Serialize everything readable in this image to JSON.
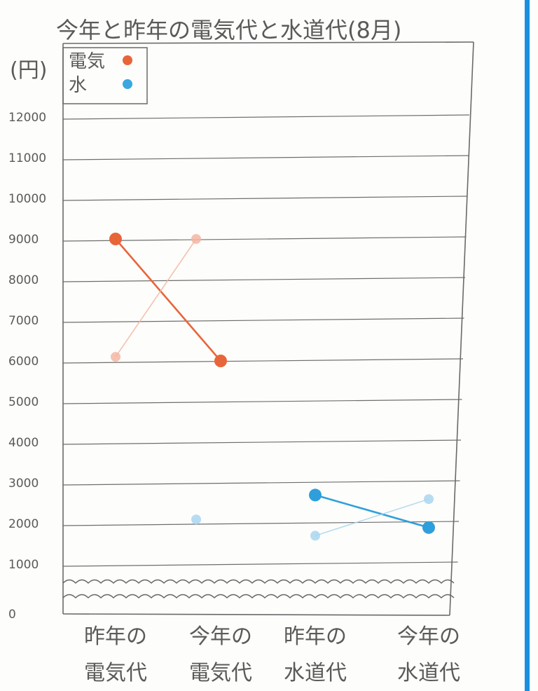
{
  "chart_data": {
    "type": "line",
    "title": "今年と昨年の電気代と水道代(8月)",
    "ylabel": "(円)",
    "categories": [
      "昨年の\n電気代",
      "今年の\n電気代",
      "昨年の\n水道代",
      "今年の\n水道代"
    ],
    "yticks": [
      "0",
      "1000",
      "2000",
      "3000",
      "4000",
      "5000",
      "6000",
      "7000",
      "8000",
      "9000",
      "10000",
      "11000",
      "12000"
    ],
    "ylim": [
      0,
      12000
    ],
    "axis_break": true,
    "legend": {
      "position": "top-left",
      "items": [
        {
          "label": "電気",
          "color": "#e8653a"
        },
        {
          "label": "水",
          "color": "#3aa7e0"
        }
      ]
    },
    "series": [
      {
        "name": "電気",
        "color": "#e8653a",
        "points": [
          {
            "category": 0,
            "value": 9000
          },
          {
            "category": 1,
            "value": 6000
          }
        ]
      },
      {
        "name": "電気",
        "color": "#f3b6a3",
        "faint": true,
        "points": [
          {
            "category": 0,
            "value": 6100
          },
          {
            "category": 1,
            "value": 9000
          }
        ]
      },
      {
        "name": "水",
        "color": "#2f9fdc",
        "points": [
          {
            "category": 2,
            "value": 2700
          },
          {
            "category": 3,
            "value": 1900
          }
        ]
      },
      {
        "name": "水",
        "color": "#a9d6f0",
        "faint": true,
        "points": [
          {
            "category": 2,
            "value": 1700
          },
          {
            "category": 3,
            "value": 2600
          }
        ]
      },
      {
        "name": "水",
        "color": "#a9d6f0",
        "faint": true,
        "points": [
          {
            "category": 1,
            "value": 2100
          }
        ]
      }
    ],
    "colors": {
      "grid": "#6e6e6e",
      "frame": "#6a6a6a",
      "border_accent": "#1a8fe0"
    }
  }
}
